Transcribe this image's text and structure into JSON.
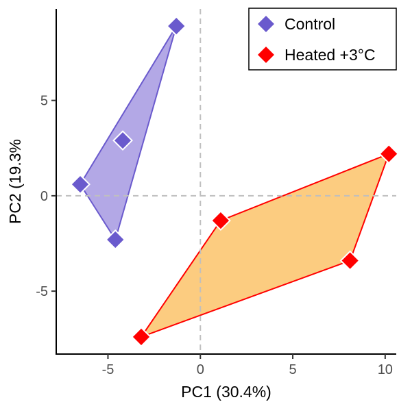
{
  "chart_data": {
    "type": "scatter",
    "title": "",
    "xlabel": "PC1 (30.4%)",
    "ylabel": "PC2 (19.3%",
    "xlim": [
      -7.8,
      10.6
    ],
    "ylim": [
      -8.3,
      9.8
    ],
    "xticks": [
      -5,
      0,
      5,
      10
    ],
    "yticks": [
      -5,
      0,
      5
    ],
    "grid": false,
    "reference_lines": {
      "x": 0,
      "y": 0,
      "style": "dashed",
      "color": "#bfbfbf"
    },
    "legend": {
      "position": "top-right"
    },
    "series": [
      {
        "name": "Control",
        "marker": "diamond",
        "color": "#6a5acd",
        "hull_fill": "#b3a8e6",
        "hull_stroke": "#6a5acd",
        "points": [
          {
            "x": -1.3,
            "y": 8.9
          },
          {
            "x": -4.2,
            "y": 2.9
          },
          {
            "x": -6.5,
            "y": 0.6
          },
          {
            "x": -4.6,
            "y": -2.3
          }
        ]
      },
      {
        "name": "Heated +3°C",
        "marker": "diamond",
        "color": "#ff0000",
        "hull_fill": "#fccc80",
        "hull_stroke": "#ff0000",
        "points": [
          {
            "x": 10.2,
            "y": 2.2
          },
          {
            "x": 1.1,
            "y": -1.3
          },
          {
            "x": 8.1,
            "y": -3.4
          },
          {
            "x": -3.2,
            "y": -7.4
          }
        ]
      }
    ]
  }
}
